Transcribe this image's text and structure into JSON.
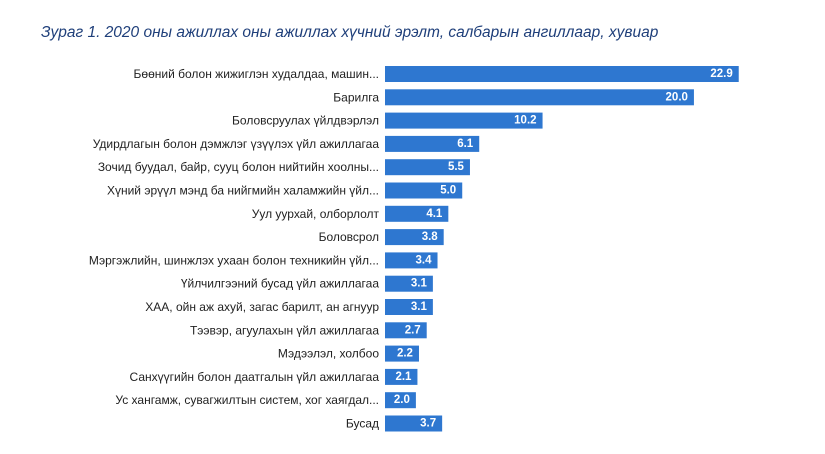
{
  "chart_data": {
    "type": "bar",
    "orientation": "horizontal",
    "title": "Зураг 1. 2020 оны ажиллах оны ажиллах хүчний эрэлт, салбарын ангиллаар, хувиар",
    "categories": [
      "Бөөний болон жижиглэн худалдаа, машин...",
      "Барилга",
      "Боловсруулах үйлдвэрлэл",
      "Удирдлагын болон дэмжлэг үзүүлэх үйл ажиллагаа",
      "Зочид буудал, байр, сууц болон нийтийн хоолны...",
      "Хүний эрүүл мэнд ба нийгмийн халамжийн үйл...",
      "Уул уурхай, олборлолт",
      "Боловсрол",
      "Мэргэжлийн, шинжлэх ухаан болон техникийн үйл...",
      "Үйлчилгээний бусад үйл ажиллагаа",
      "ХАА, ойн аж ахуй, загас барилт, ан агнуур",
      "Тээвэр, агуулахын үйл ажиллагаа",
      "Мэдээлэл, холбоо",
      "Санхүүгийн болон даатгалын үйл ажиллагаа",
      "Ус хангамж, сувагжилтын систем, хог хаягдал...",
      "Бусад"
    ],
    "values": [
      22.9,
      20.0,
      10.2,
      6.1,
      5.5,
      5.0,
      4.1,
      3.8,
      3.4,
      3.1,
      3.1,
      2.7,
      2.2,
      2.1,
      2.0,
      3.7
    ],
    "value_labels": [
      "22.9",
      "20.0",
      "10.2",
      "6.1",
      "5.5",
      "5.0",
      "4.1",
      "3.8",
      "3.4",
      "3.1",
      "3.1",
      "2.7",
      "2.2",
      "2.1",
      "2.0",
      "3.7"
    ],
    "xlim": [
      0,
      23.5
    ],
    "grid": false,
    "legend": "none",
    "bar_color": "#2e77d0",
    "value_label_color": "#ffffff"
  }
}
